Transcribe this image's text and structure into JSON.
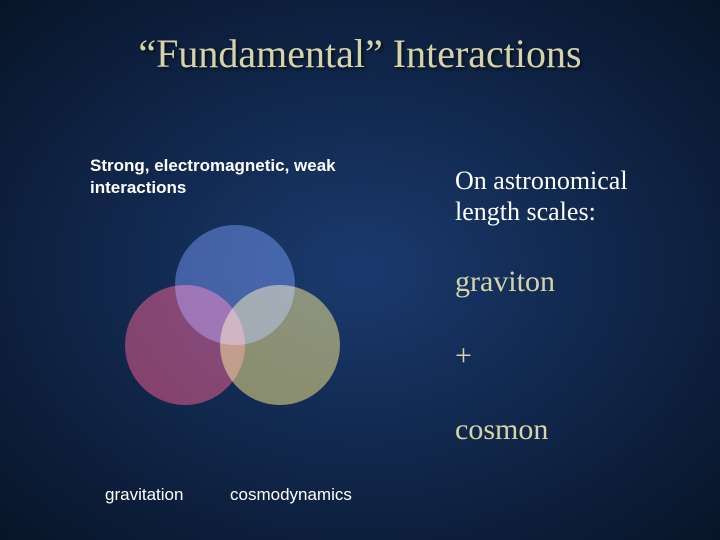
{
  "title": "“Fundamental” Interactions",
  "subtitle_left": "Strong, electromagnetic, weak\ninteractions",
  "venn": {
    "circles": [
      {
        "name": "top",
        "color": "#4a5aa8"
      },
      {
        "name": "left",
        "color": "#b03048"
      },
      {
        "name": "right",
        "color": "#b8a838"
      }
    ]
  },
  "labels": {
    "gravitation": "gravitation",
    "cosmodynamics": "cosmodynamics"
  },
  "right": {
    "intro": "On astronomical length scales:",
    "items": [
      "graviton",
      "+",
      "cosmon"
    ]
  },
  "colors": {
    "title": "#d4d4a8",
    "body_text": "#ffffff",
    "accent_text": "#d4d4a8",
    "bg_center": "#1a3a6e",
    "bg_edge": "#081528"
  },
  "fonts": {
    "title_family": "Times New Roman",
    "title_size_pt": 30,
    "body_family": "Arial",
    "body_size_pt": 13,
    "right_item_size_pt": 22
  }
}
